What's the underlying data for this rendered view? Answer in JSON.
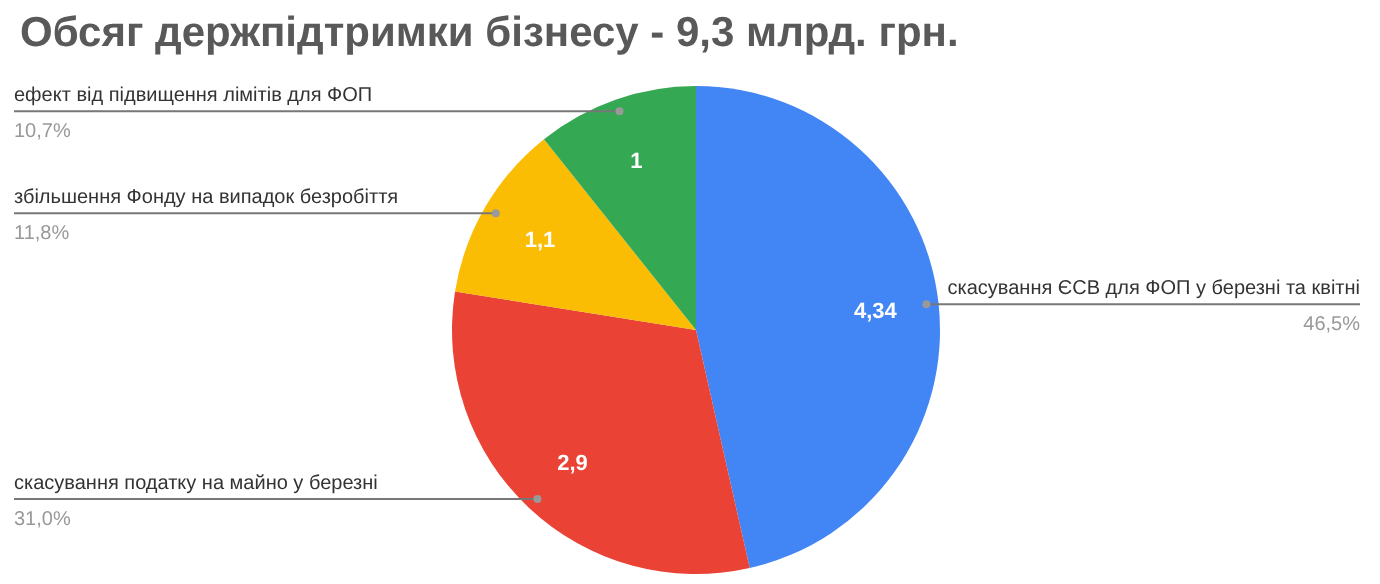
{
  "chart_data": {
    "type": "pie",
    "title": "Обсяг держпідтримки бізнесу - 9,3 млрд. грн.",
    "categories": [
      "скасування ЄСВ для ФОП у березні та квітні",
      "скасування податку на майно у березні",
      "збільшення Фонду на випадок безробіття",
      "ефект від підвищення лімітів для ФОП"
    ],
    "values": [
      4.34,
      2.9,
      1.1,
      1
    ],
    "value_labels": [
      "4,34",
      "2,9",
      "1,1",
      "1"
    ],
    "colors": [
      "#4285f4",
      "#ea4335",
      "#fbbc04",
      "#34a853"
    ],
    "annotations": [
      "46,5%",
      "31,0%",
      "11,8%",
      "10,7%"
    ],
    "legend": false
  }
}
